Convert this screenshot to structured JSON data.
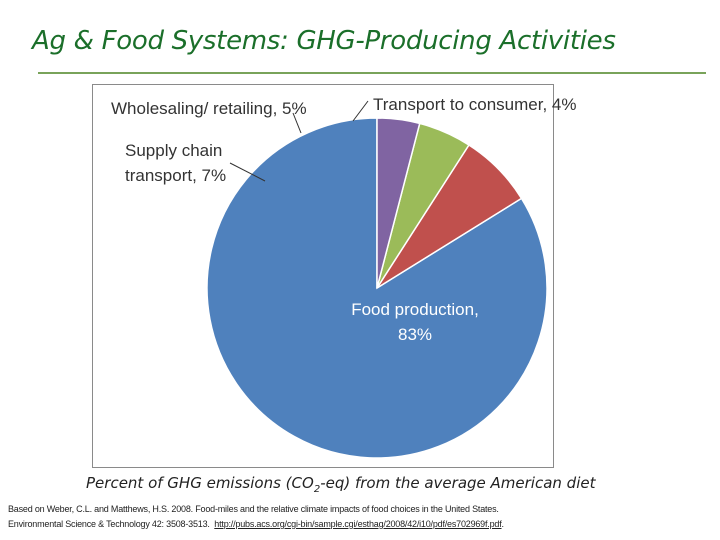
{
  "slide": {
    "title": "Ag & Food Systems: GHG-Producing Activities"
  },
  "caption": {
    "prefix": "Percent of GHG emissions (CO",
    "subscript": "2",
    "suffix": "-eq) from the average American diet"
  },
  "citation": {
    "line1": "Based on Weber, C.L. and Matthews, H.S. 2008. Food-miles and the relative climate impacts of food choices in the United States.",
    "line2_text": "Environmental Science & Technology 42: 3508-3513.",
    "line2_link": "http://pubs.acs.org/cgi-bin/sample.cgi/esthag/2008/42/i10/pdf/es702969f.pdf",
    "line2_end": "."
  },
  "chart_data": {
    "type": "pie",
    "start_angle_deg": 0,
    "direction": "counterclockwise",
    "slices": [
      {
        "name": "Food production",
        "value": 83,
        "label_lines": [
          "Food production,",
          "83%"
        ],
        "color": "#4f81bd"
      },
      {
        "name": "Supply chain transport",
        "value": 7,
        "label_lines": [
          "Supply chain",
          "transport, 7%"
        ],
        "color": "#c0504d"
      },
      {
        "name": "Wholesaling/ retailing",
        "value": 5,
        "label_lines": [
          "Wholesaling/ retailing, 5%"
        ],
        "color": "#9bbb59"
      },
      {
        "name": "Transport to consumer",
        "value": 4,
        "label_lines": [
          "Transport to consumer, 4%"
        ],
        "color": "#8064a2"
      }
    ]
  }
}
